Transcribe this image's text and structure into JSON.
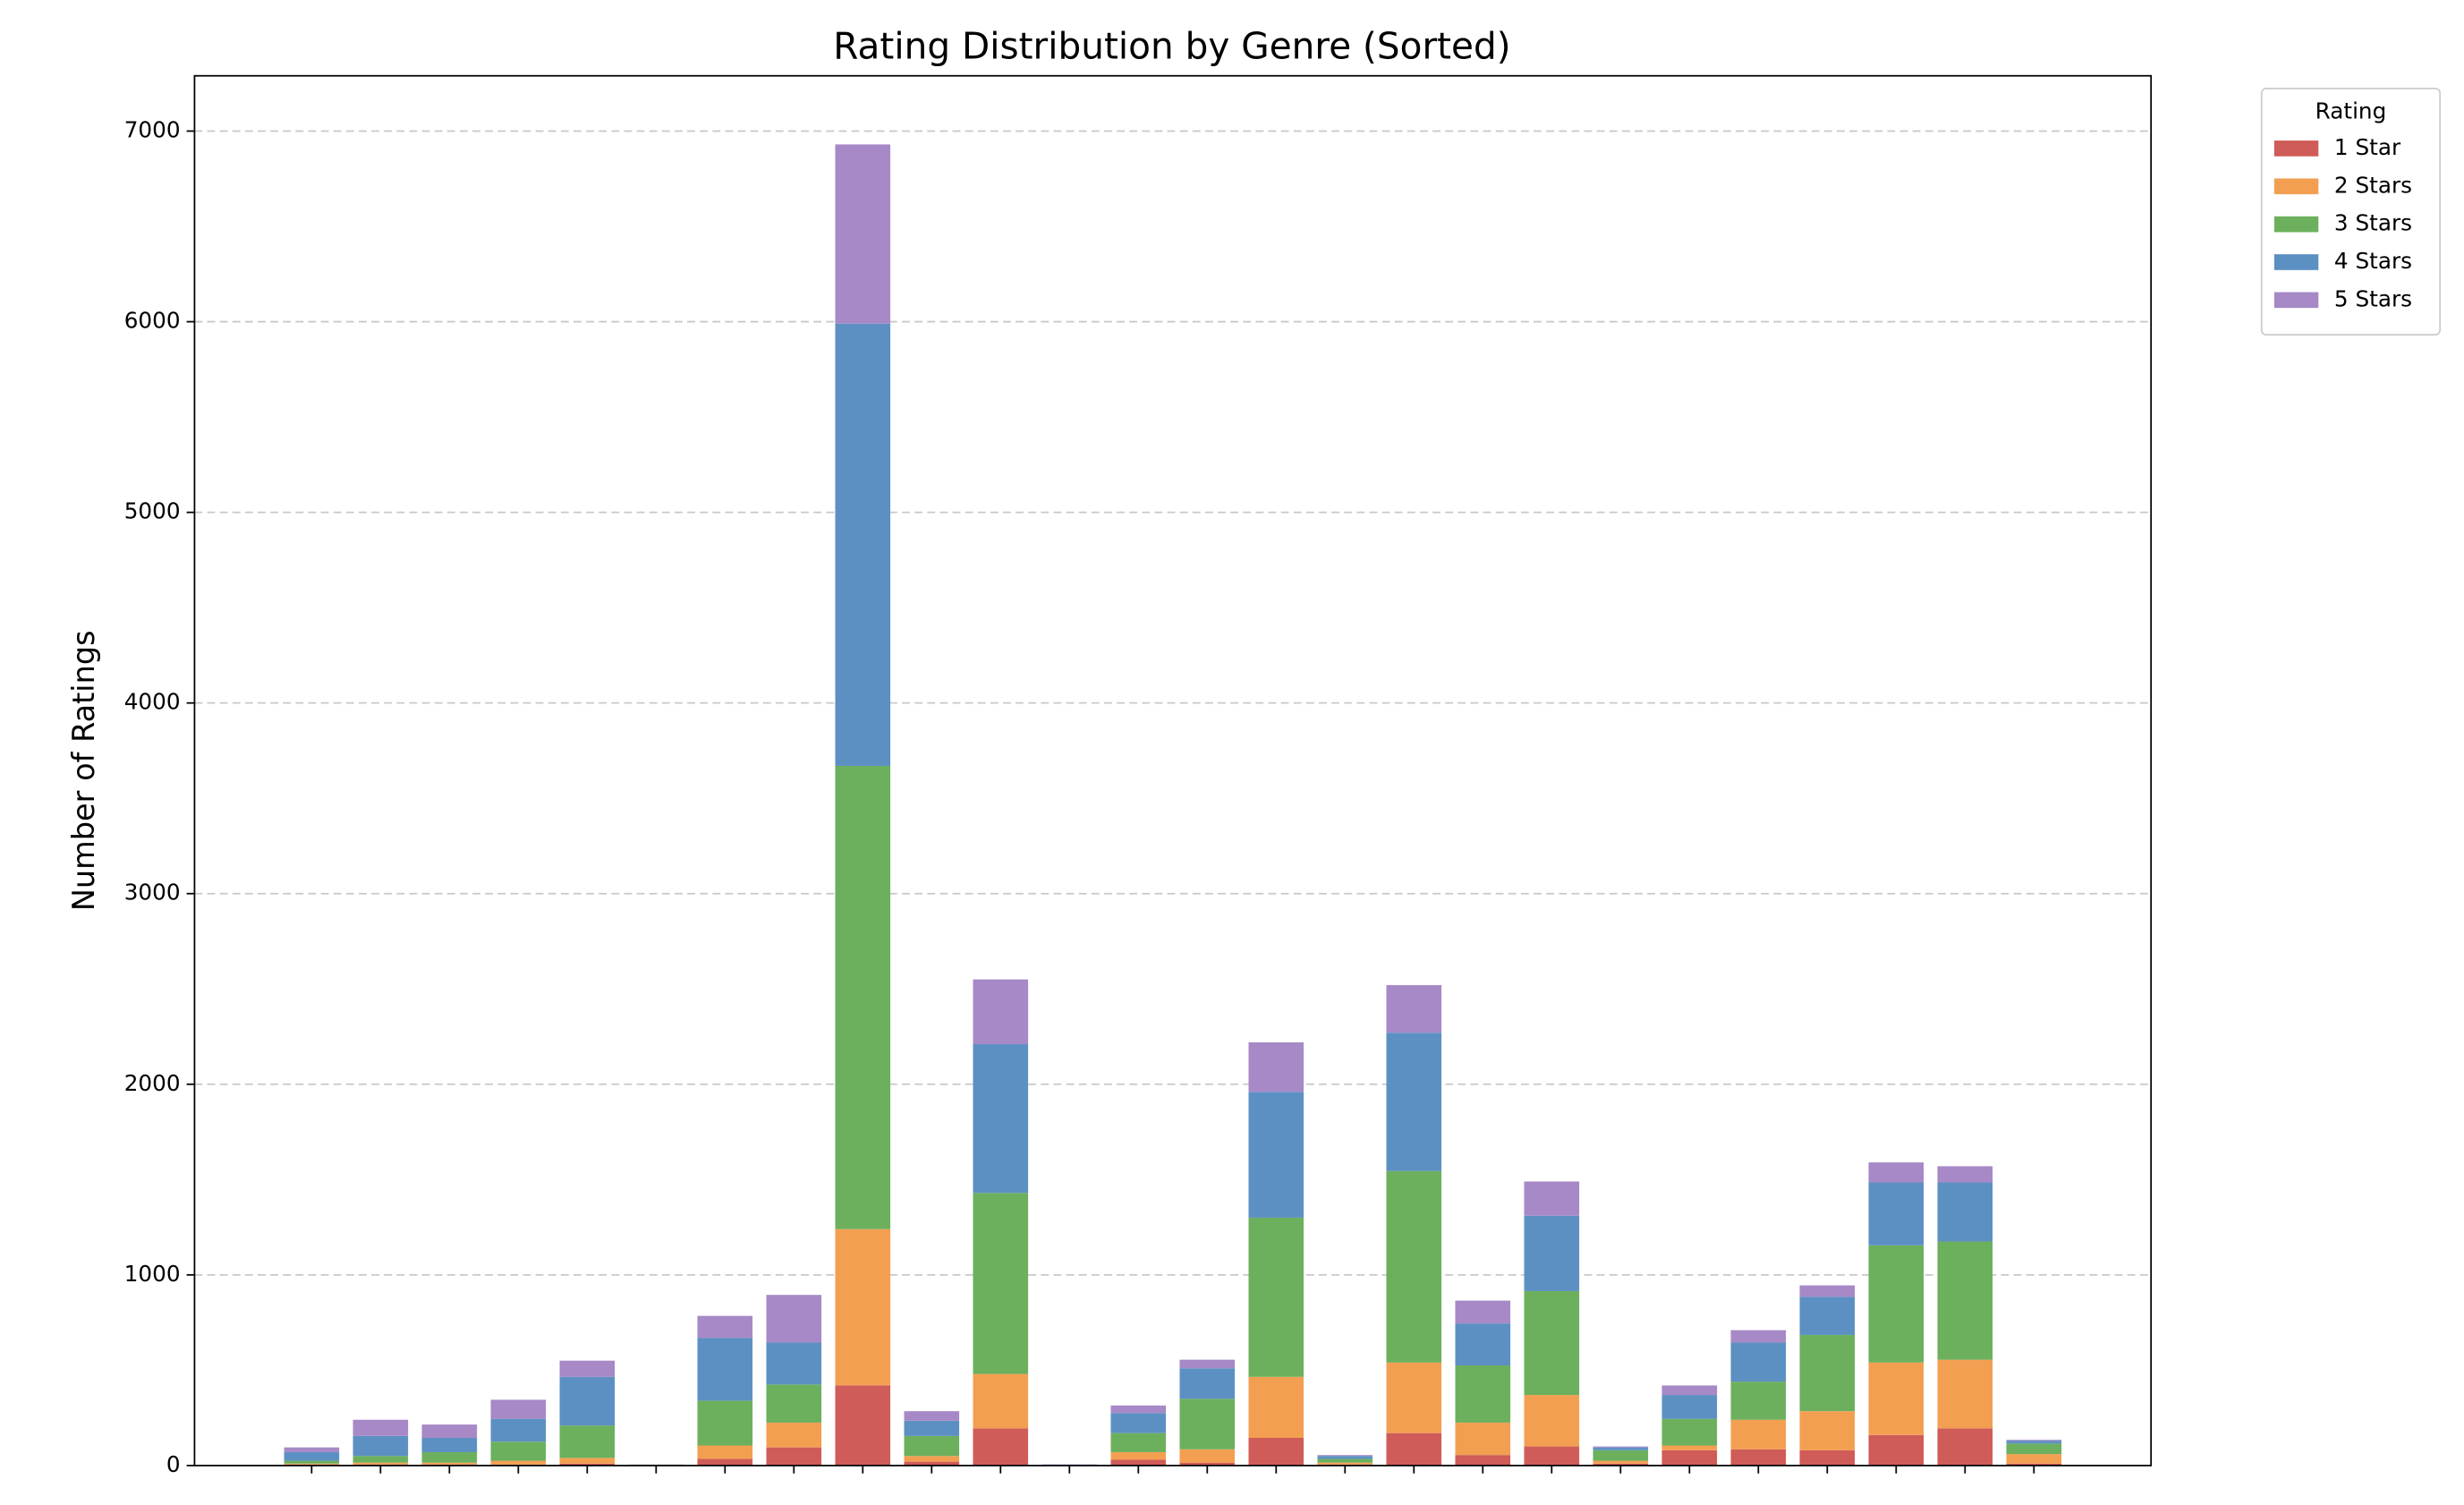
{
  "chart_data": {
    "type": "stacked_bar",
    "title": "Rating Distribution by Genre (Sorted)",
    "y_label": "Number of Ratings",
    "legend_title": "Rating",
    "legend_loc": "outside upper right",
    "grid": true,
    "ylim": [
      0,
      7290
    ],
    "yticks": [
      0,
      1000,
      2000,
      3000,
      4000,
      5000,
      6000,
      7000
    ],
    "categories": [
      null,
      null,
      null,
      null,
      null,
      null,
      null,
      null,
      null,
      null,
      null,
      null,
      null,
      null,
      null,
      null,
      null,
      null,
      null,
      null,
      null,
      null,
      null,
      null,
      null,
      null
    ],
    "series": [
      {
        "name": "1 Star",
        "color": "#cf5c58",
        "values": [
          5,
          5,
          5,
          5,
          10,
          1,
          35,
          95,
          420,
          20,
          195,
          1,
          30,
          15,
          145,
          5,
          170,
          55,
          100,
          10,
          80,
          85,
          80,
          160,
          195,
          10
        ]
      },
      {
        "name": "2 Stars",
        "color": "#f39f52",
        "values": [
          5,
          10,
          10,
          20,
          30,
          1,
          70,
          130,
          820,
          30,
          285,
          1,
          40,
          70,
          320,
          10,
          370,
          170,
          270,
          15,
          25,
          155,
          205,
          380,
          360,
          50
        ]
      },
      {
        "name": "3 Stars",
        "color": "#6cb05e",
        "values": [
          15,
          35,
          55,
          100,
          170,
          1,
          235,
          200,
          2430,
          105,
          950,
          1,
          100,
          265,
          835,
          20,
          1005,
          300,
          545,
          55,
          140,
          200,
          400,
          615,
          620,
          55
        ]
      },
      {
        "name": "4 Stars",
        "color": "#5c90c3",
        "values": [
          45,
          105,
          75,
          120,
          255,
          1,
          330,
          220,
          2320,
          80,
          780,
          2,
          105,
          160,
          660,
          15,
          725,
          220,
          395,
          15,
          125,
          205,
          200,
          330,
          310,
          15
        ]
      },
      {
        "name": "5 Stars",
        "color": "#a689c6",
        "values": [
          25,
          85,
          70,
          100,
          85,
          1,
          115,
          250,
          940,
          50,
          340,
          1,
          40,
          45,
          260,
          5,
          250,
          120,
          180,
          5,
          50,
          65,
          60,
          105,
          85,
          5
        ]
      }
    ]
  }
}
